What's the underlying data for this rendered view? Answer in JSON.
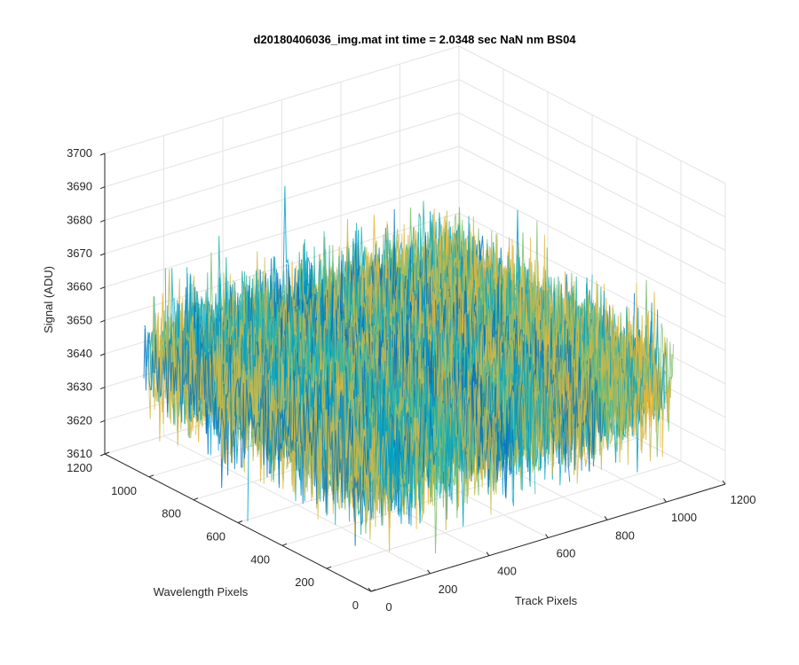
{
  "chart_data": {
    "type": "surface",
    "title": "d20180406036_img.mat int time = 2.0348 sec  NaN nm BS04",
    "xlabel": "Track Pixels",
    "ylabel": "Wavelength Pixels",
    "zlabel": "Signal (ADU)",
    "xlim": [
      0,
      1200
    ],
    "ylim": [
      0,
      1200
    ],
    "zlim": [
      3610,
      3700
    ],
    "x_ticks": [
      "0",
      "200",
      "400",
      "600",
      "800",
      "1000",
      "1200"
    ],
    "y_ticks": [
      "0",
      "200",
      "400",
      "600",
      "800",
      "1000",
      "1200"
    ],
    "z_ticks": [
      "3610",
      "3620",
      "3630",
      "3640",
      "3650",
      "3660",
      "3670",
      "3680",
      "3690",
      "3700"
    ],
    "grid": true,
    "surface": {
      "x_range": [
        0,
        1024
      ],
      "y_range": [
        0,
        1024
      ],
      "mean_signal": 3645,
      "signal_min": 3612,
      "signal_max": 3692,
      "colormap": [
        "#0072bd",
        "#00a3c9",
        "#2fb5a8",
        "#7cbf6e",
        "#c9b94a",
        "#e6b63a"
      ]
    }
  }
}
